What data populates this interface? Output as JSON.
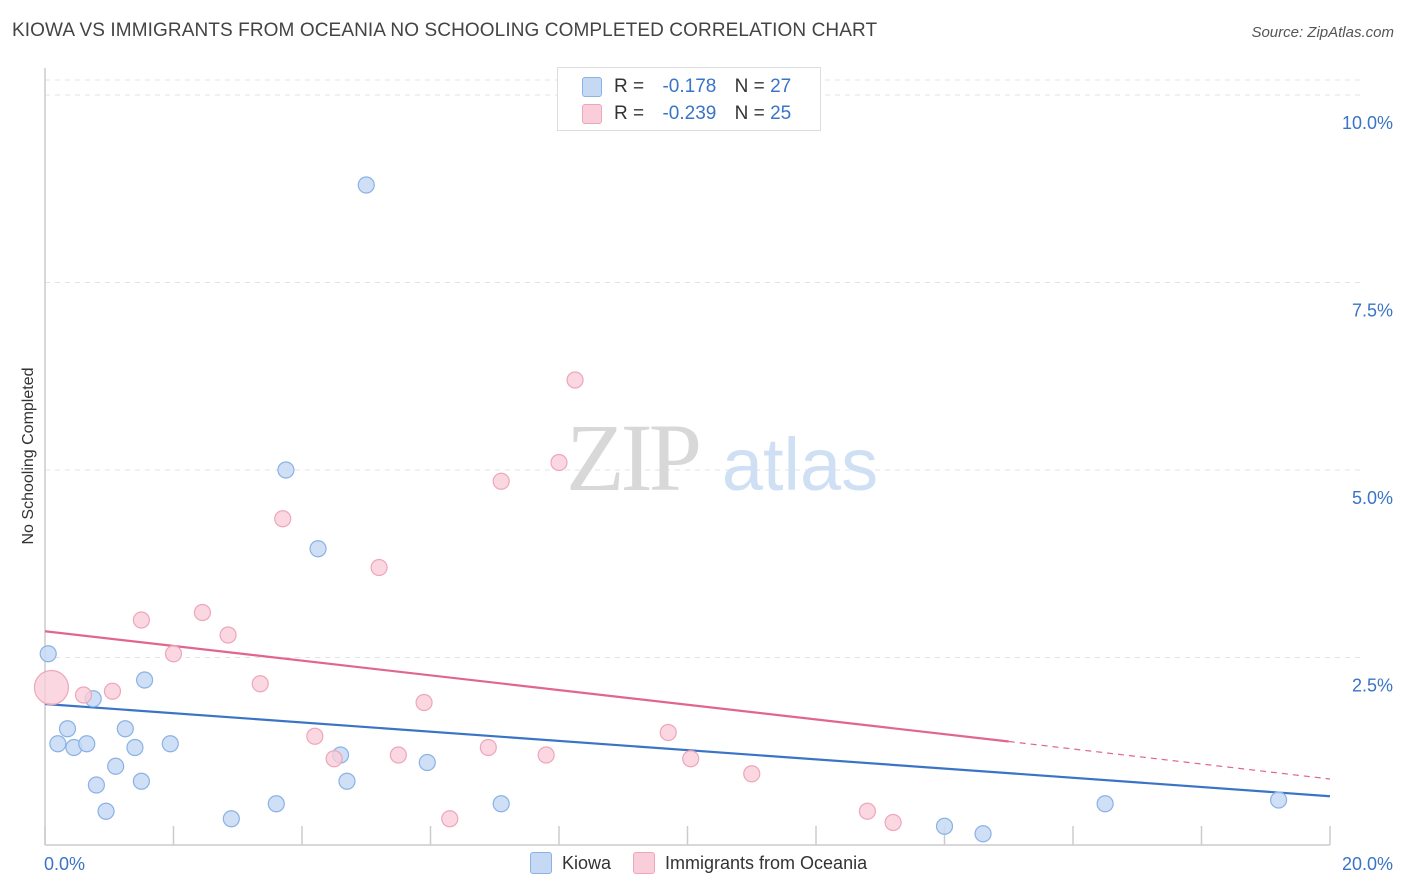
{
  "title": "KIOWA VS IMMIGRANTS FROM OCEANIA NO SCHOOLING COMPLETED CORRELATION CHART",
  "source": "Source: ZipAtlas.com",
  "watermark": {
    "zip": "ZIP",
    "atlas": "atlas"
  },
  "legend_top": {
    "rows": [
      {
        "r_label": "R =",
        "r_value": "-0.178",
        "n_label": "N =",
        "n_value": "27"
      },
      {
        "r_label": "R =",
        "r_value": "-0.239",
        "n_label": "N =",
        "n_value": "25"
      }
    ]
  },
  "legend_bottom": {
    "items": [
      "Kiowa",
      "Immigrants from Oceania"
    ]
  },
  "colors": {
    "kiowa_fill": "#c5d9f5",
    "kiowa_stroke": "#8ab2e6",
    "kiowa_line": "#3a74c6",
    "oceania_fill": "#f9cdd9",
    "oceania_stroke": "#eea6bb",
    "oceania_line": "#e0668e",
    "axis_label": "#3a74c6",
    "grid": "#e3e3e3"
  },
  "chart_data": {
    "type": "scatter",
    "title": "KIOWA VS IMMIGRANTS FROM OCEANIA NO SCHOOLING COMPLETED CORRELATION CHART",
    "xlabel": "",
    "ylabel": "No Schooling Completed",
    "xlim": [
      0,
      20
    ],
    "ylim": [
      0,
      10.2
    ],
    "x_tick_labels": [
      "0.0%",
      "20.0%"
    ],
    "y_ticks": [
      2.5,
      5.0,
      7.5,
      10.0
    ],
    "y_tick_labels": [
      "2.5%",
      "5.0%",
      "7.5%",
      "10.0%"
    ],
    "grid": "horizontal dashed",
    "series": [
      {
        "name": "Kiowa",
        "r": -0.178,
        "n": 27,
        "points": [
          [
            0.05,
            2.55
          ],
          [
            0.2,
            1.35
          ],
          [
            0.35,
            1.55
          ],
          [
            0.45,
            1.3
          ],
          [
            0.65,
            1.35
          ],
          [
            0.75,
            1.95
          ],
          [
            0.8,
            0.8
          ],
          [
            0.95,
            0.45
          ],
          [
            1.1,
            1.05
          ],
          [
            1.25,
            1.55
          ],
          [
            1.4,
            1.3
          ],
          [
            1.5,
            0.85
          ],
          [
            1.55,
            2.2
          ],
          [
            1.95,
            1.35
          ],
          [
            2.9,
            0.35
          ],
          [
            3.6,
            0.55
          ],
          [
            3.75,
            5.0
          ],
          [
            4.25,
            3.95
          ],
          [
            4.6,
            1.2
          ],
          [
            4.7,
            0.85
          ],
          [
            5.0,
            8.8
          ],
          [
            5.95,
            1.1
          ],
          [
            7.1,
            0.55
          ],
          [
            14.0,
            0.25
          ],
          [
            14.6,
            0.15
          ],
          [
            16.5,
            0.55
          ],
          [
            19.2,
            0.6
          ]
        ],
        "trend": {
          "x0": 0,
          "y0": 1.88,
          "x1": 20,
          "y1": 0.65
        }
      },
      {
        "name": "Immigrants from Oceania",
        "r": -0.239,
        "n": 25,
        "points": [
          [
            0.1,
            2.1
          ],
          [
            0.6,
            2.0
          ],
          [
            1.05,
            2.05
          ],
          [
            1.5,
            3.0
          ],
          [
            2.0,
            2.55
          ],
          [
            2.45,
            3.1
          ],
          [
            2.85,
            2.8
          ],
          [
            3.35,
            2.15
          ],
          [
            3.7,
            4.35
          ],
          [
            4.2,
            1.45
          ],
          [
            4.5,
            1.15
          ],
          [
            5.2,
            3.7
          ],
          [
            5.5,
            1.2
          ],
          [
            5.9,
            1.9
          ],
          [
            6.3,
            0.35
          ],
          [
            6.9,
            1.3
          ],
          [
            7.1,
            4.85
          ],
          [
            7.8,
            1.2
          ],
          [
            8.0,
            5.1
          ],
          [
            8.25,
            6.2
          ],
          [
            9.7,
            1.5
          ],
          [
            10.05,
            1.15
          ],
          [
            11.0,
            0.95
          ],
          [
            12.8,
            0.45
          ],
          [
            13.2,
            0.3
          ]
        ],
        "trend": {
          "x0": 0,
          "y0": 2.85,
          "x1": 15.0,
          "y1": 1.38,
          "dash_to_x": 20,
          "dash_to_y": 0.88
        }
      }
    ]
  }
}
